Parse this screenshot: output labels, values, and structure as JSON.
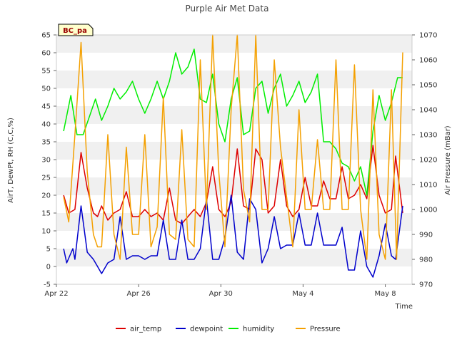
{
  "chart_data": {
    "type": "line",
    "title": "Purple Air Met Data",
    "station_label": "BC_pa",
    "xlabel": "Time",
    "ylabel_left": "AirT, DewPt, RH (C,C,%)",
    "ylabel_right": "Air Pressure (mBar)",
    "x_range_days": [
      "Apr 22",
      "May 9"
    ],
    "x_ticks": [
      {
        "label": "Apr 22",
        "day": 0
      },
      {
        "label": "Apr 26",
        "day": 4
      },
      {
        "label": "Apr 30",
        "day": 8
      },
      {
        "label": "May 4",
        "day": 12
      },
      {
        "label": "May 8",
        "day": 16
      }
    ],
    "ylim_left": [
      -5,
      65
    ],
    "yticks_left": [
      -5,
      0,
      5,
      10,
      15,
      20,
      25,
      30,
      35,
      40,
      45,
      50,
      55,
      60,
      65
    ],
    "ylim_right": [
      970,
      1070
    ],
    "yticks_right": [
      970,
      980,
      990,
      1000,
      1010,
      1020,
      1030,
      1040,
      1050,
      1060,
      1070
    ],
    "grid": "horizontal bands",
    "legend_position": "bottom",
    "series": [
      {
        "name": "air_temp",
        "color": "#dd0000",
        "axis": "left",
        "x": [
          0.35,
          0.6,
          0.9,
          1.2,
          1.5,
          1.8,
          2.0,
          2.2,
          2.5,
          2.8,
          3.1,
          3.4,
          3.7,
          4.0,
          4.3,
          4.6,
          4.9,
          5.2,
          5.5,
          5.8,
          6.1,
          6.4,
          6.7,
          7.0,
          7.3,
          7.6,
          7.9,
          8.2,
          8.5,
          8.8,
          9.1,
          9.4,
          9.7,
          10.0,
          10.3,
          10.6,
          10.9,
          11.2,
          11.5,
          11.8,
          12.1,
          12.4,
          12.7,
          13.0,
          13.3,
          13.6,
          13.9,
          14.2,
          14.5,
          14.8,
          15.1,
          15.4,
          15.7,
          16.0,
          16.3,
          16.5,
          16.85
        ],
        "y": [
          20,
          15,
          16,
          32,
          22,
          15,
          14,
          17,
          13,
          15,
          16,
          21,
          14,
          14,
          16,
          14,
          15,
          13,
          22,
          13,
          12,
          14,
          16,
          14,
          18,
          28,
          16,
          14,
          18,
          33,
          17,
          16,
          33,
          30,
          15,
          17,
          30,
          17,
          14,
          16,
          25,
          17,
          17,
          24,
          19,
          19,
          28,
          19,
          20,
          23,
          19,
          34,
          20,
          15,
          16,
          31,
          15
        ]
      },
      {
        "name": "dewpoint",
        "color": "#0000cc",
        "axis": "left",
        "x": [
          0.35,
          0.5,
          0.8,
          0.9,
          1.2,
          1.5,
          1.8,
          2.0,
          2.2,
          2.5,
          2.8,
          3.1,
          3.4,
          3.7,
          4.0,
          4.3,
          4.6,
          4.9,
          5.2,
          5.5,
          5.8,
          6.1,
          6.4,
          6.7,
          7.0,
          7.3,
          7.6,
          7.9,
          8.2,
          8.5,
          8.8,
          9.1,
          9.4,
          9.7,
          10.0,
          10.3,
          10.6,
          10.9,
          11.2,
          11.5,
          11.8,
          12.1,
          12.4,
          12.7,
          13.0,
          13.3,
          13.6,
          13.9,
          14.2,
          14.5,
          14.8,
          15.1,
          15.4,
          15.7,
          16.0,
          16.3,
          16.5,
          16.85
        ],
        "y": [
          5,
          1,
          5,
          2,
          17,
          4,
          2,
          0,
          -2,
          1,
          2,
          14,
          2,
          3,
          3,
          2,
          3,
          3,
          13,
          2,
          2,
          13,
          2,
          2,
          5,
          19,
          2,
          2,
          8,
          20,
          4,
          2,
          19,
          16,
          1,
          5,
          14,
          5,
          6,
          6,
          15,
          6,
          6,
          15,
          6,
          6,
          6,
          11,
          -1,
          -1,
          10,
          0,
          -3,
          3,
          12,
          3,
          2,
          17
        ]
      },
      {
        "name": "humidity",
        "color": "#00ee00",
        "axis": "left",
        "x": [
          0.35,
          0.7,
          1.0,
          1.3,
          1.6,
          1.9,
          2.2,
          2.5,
          2.8,
          3.1,
          3.4,
          3.7,
          4.0,
          4.3,
          4.6,
          4.9,
          5.2,
          5.5,
          5.8,
          6.1,
          6.4,
          6.7,
          7.0,
          7.3,
          7.6,
          7.9,
          8.2,
          8.5,
          8.8,
          9.1,
          9.4,
          9.7,
          10.0,
          10.3,
          10.6,
          10.9,
          11.2,
          11.5,
          11.8,
          12.1,
          12.4,
          12.7,
          13.0,
          13.3,
          13.6,
          13.9,
          14.2,
          14.5,
          14.8,
          15.1,
          15.4,
          15.7,
          16.0,
          16.3,
          16.6,
          16.85
        ],
        "y": [
          38,
          48,
          37,
          37,
          42,
          47,
          41,
          45,
          50,
          47,
          49,
          52,
          47,
          43,
          47,
          52,
          47,
          52,
          60,
          54,
          56,
          61,
          47,
          46,
          54,
          40,
          35,
          47,
          53,
          37,
          38,
          50,
          52,
          43,
          50,
          54,
          45,
          48,
          52,
          46,
          49,
          54,
          35,
          35,
          33,
          29,
          28,
          24,
          28,
          20,
          38,
          48,
          41,
          46,
          53,
          53
        ]
      },
      {
        "name": "Pressure",
        "color": "#f4a000",
        "axis": "right",
        "x": [
          0.35,
          0.6,
          0.9,
          1.2,
          1.5,
          1.8,
          2.0,
          2.2,
          2.5,
          2.8,
          3.1,
          3.4,
          3.7,
          4.0,
          4.3,
          4.6,
          4.9,
          5.2,
          5.5,
          5.8,
          6.1,
          6.4,
          6.7,
          7.0,
          7.3,
          7.6,
          7.9,
          8.2,
          8.5,
          8.8,
          9.1,
          9.4,
          9.7,
          10.0,
          10.3,
          10.6,
          10.9,
          11.2,
          11.5,
          11.8,
          12.1,
          12.4,
          12.7,
          13.0,
          13.3,
          13.6,
          13.9,
          14.2,
          14.5,
          14.8,
          15.1,
          15.4,
          15.7,
          16.0,
          16.3,
          16.55,
          16.85
        ],
        "y": [
          1005,
          995,
          1030,
          1067,
          1015,
          990,
          985,
          985,
          1030,
          990,
          980,
          1025,
          990,
          990,
          1030,
          985,
          993,
          1045,
          990,
          988,
          1032,
          988,
          985,
          1060,
          1000,
          1070,
          1015,
          985,
          1040,
          1070,
          1008,
          995,
          1070,
          1000,
          1000,
          1060,
          1025,
          1005,
          985,
          1040,
          1000,
          1000,
          1028,
          1000,
          1000,
          1060,
          1000,
          1000,
          1058,
          1000,
          980,
          1048,
          990,
          980,
          1048,
          980,
          1063
        ]
      }
    ]
  }
}
